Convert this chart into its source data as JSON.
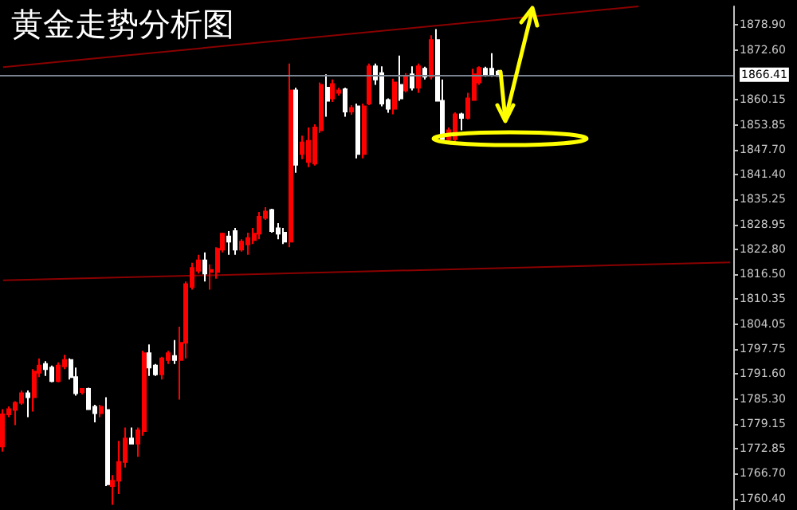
{
  "chart_data": {
    "type": "candlestick",
    "title": "黄金走势分析图",
    "categories": [
      null,
      null,
      null,
      null,
      null,
      null,
      null,
      null,
      null,
      null,
      null,
      null,
      null,
      null,
      null,
      null,
      null,
      null,
      null,
      null,
      null,
      null,
      null,
      null,
      null,
      null,
      null,
      null,
      null,
      null,
      null,
      null,
      null,
      null,
      null,
      null,
      null,
      null,
      null,
      null,
      null,
      null,
      null,
      null,
      null,
      null,
      null,
      null,
      null,
      null,
      null,
      null,
      null,
      null,
      null,
      null,
      null,
      null,
      null,
      null,
      null,
      null,
      null,
      null,
      null,
      null,
      null,
      null,
      null,
      null,
      null,
      null,
      null,
      null,
      null,
      null,
      null,
      null,
      null,
      null,
      null,
      null,
      null,
      null,
      null,
      null,
      null,
      null,
      null,
      null,
      null,
      null,
      null,
      null,
      null,
      null,
      null,
      null,
      null,
      null,
      null,
      null,
      null,
      null,
      null,
      null,
      null,
      null,
      null,
      null,
      null,
      null,
      null,
      null,
      null,
      null,
      null,
      null,
      null,
      null
    ],
    "series": [
      {
        "ohlc": [
          [
            1773.5,
            1782.8,
            1772.2,
            1781.5
          ],
          [
            1781.5,
            1783.5,
            1780.8,
            1782.8
          ],
          [
            1782.6,
            1784.8,
            1778.8,
            1784.4
          ],
          [
            1784.4,
            1787.5,
            1783.9,
            1786.8
          ],
          [
            1786.8,
            1787.5,
            1780.8,
            1785.8
          ],
          [
            1785.8,
            1792.8,
            1782.2,
            1792.2
          ],
          [
            1791.9,
            1795.5,
            1790.8,
            1793.7
          ],
          [
            1794.1,
            1794.8,
            1791.1,
            1792.8
          ],
          [
            1793.2,
            1793.7,
            1789.5,
            1789.8
          ],
          [
            1789.8,
            1794.5,
            1789.5,
            1793.7
          ],
          [
            1793.5,
            1796.4,
            1792.8,
            1795.1
          ],
          [
            1795.1,
            1795.5,
            1790.2,
            1790.8
          ],
          [
            1790.8,
            1793.2,
            1786.2,
            1786.8
          ],
          [
            1787.1,
            1787.9,
            1786.5,
            1787.9
          ],
          [
            1787.9,
            1788.2,
            1782.6,
            1782.8
          ],
          [
            1783.4,
            1783.9,
            1779.5,
            1781.8
          ],
          [
            1781.8,
            1783.9,
            1780.8,
            1783.4
          ],
          [
            1782.6,
            1785.8,
            1763.6,
            1764.0
          ],
          [
            1763.6,
            1766.3,
            1758.9,
            1764.9
          ],
          [
            1764.9,
            1774.9,
            1761.6,
            1769.6
          ],
          [
            1769.6,
            1778.2,
            1768.2,
            1775.5
          ],
          [
            1775.5,
            1778.2,
            1774.2,
            1774.2
          ],
          [
            1774.2,
            1778.2,
            1770.9,
            1777.5
          ],
          [
            1777.3,
            1797.4,
            1776.2,
            1796.8
          ],
          [
            1796.8,
            1799.0,
            1791.1,
            1793.2
          ],
          [
            1793.7,
            1794.1,
            1791.1,
            1791.5
          ],
          [
            1791.5,
            1795.9,
            1790.2,
            1795.5
          ],
          [
            1795.1,
            1797.4,
            1794.1,
            1796.8
          ],
          [
            1796.1,
            1800.1,
            1794.1,
            1795.1
          ],
          [
            1795.1,
            1803.4,
            1785.2,
            1799.4
          ],
          [
            1799.4,
            1814.7,
            1795.5,
            1814.1
          ],
          [
            1813.4,
            1819.4,
            1812.7,
            1818.1
          ],
          [
            1817.4,
            1821.4,
            1816.7,
            1820.0
          ],
          [
            1820.0,
            1822.0,
            1814.7,
            1816.7
          ],
          [
            1817.1,
            1819.0,
            1812.7,
            1817.6
          ],
          [
            1817.1,
            1823.3,
            1815.4,
            1822.9
          ],
          [
            1822.7,
            1826.9,
            1822.0,
            1826.7
          ],
          [
            1826.0,
            1827.3,
            1821.4,
            1824.7
          ],
          [
            1827.3,
            1828.1,
            1821.4,
            1822.7
          ],
          [
            1822.7,
            1825.3,
            1822.2,
            1824.7
          ],
          [
            1824.0,
            1826.9,
            1821.4,
            1825.6
          ],
          [
            1825.1,
            1828.1,
            1824.1,
            1826.7
          ],
          [
            1826.7,
            1832.1,
            1825.3,
            1830.9
          ],
          [
            1830.6,
            1833.3,
            1830.1,
            1832.2
          ],
          [
            1832.6,
            1832.9,
            1826.9,
            1827.3
          ],
          [
            1828.0,
            1829.3,
            1825.3,
            1826.7
          ],
          [
            1826.9,
            1828.1,
            1824.1,
            1824.7
          ],
          [
            1824.7,
            1869.2,
            1823.3,
            1862.5
          ],
          [
            1862.5,
            1863.2,
            1841.9,
            1843.9
          ],
          [
            1846.6,
            1851.2,
            1845.3,
            1849.5
          ],
          [
            1844.6,
            1853.2,
            1843.3,
            1849.9
          ],
          [
            1844.2,
            1854.0,
            1843.7,
            1853.2
          ],
          [
            1852.5,
            1864.5,
            1851.9,
            1863.9
          ],
          [
            1863.2,
            1866.5,
            1855.9,
            1859.9
          ],
          [
            1860.5,
            1865.2,
            1859.6,
            1864.1
          ],
          [
            1861.9,
            1863.2,
            1861.2,
            1862.5
          ],
          [
            1862.8,
            1863.2,
            1855.9,
            1857.2
          ],
          [
            1857.2,
            1858.8,
            1856.4,
            1858.1
          ],
          [
            1858.5,
            1859.2,
            1845.5,
            1846.6
          ],
          [
            1846.6,
            1859.2,
            1845.5,
            1858.5
          ],
          [
            1859.2,
            1869.2,
            1858.8,
            1868.5
          ],
          [
            1868.5,
            1869.2,
            1863.9,
            1865.2
          ],
          [
            1866.8,
            1868.5,
            1858.5,
            1859.2
          ],
          [
            1860.1,
            1860.5,
            1856.9,
            1857.9
          ],
          [
            1857.9,
            1865.4,
            1856.5,
            1864.5
          ],
          [
            1863.9,
            1871.2,
            1859.9,
            1860.5
          ],
          [
            1862.5,
            1866.8,
            1862.0,
            1865.9
          ],
          [
            1866.5,
            1868.5,
            1862.5,
            1863.2
          ],
          [
            1863.2,
            1869.2,
            1861.9,
            1868.5
          ],
          [
            1867.9,
            1868.4,
            1865.2,
            1865.9
          ],
          [
            1865.9,
            1876.3,
            1865.2,
            1875.1
          ],
          [
            1875.1,
            1877.8,
            1859.9,
            1859.9
          ],
          [
            1859.9,
            1865.2,
            1850.3,
            1850.3
          ],
          [
            1850.3,
            1853.2,
            1849.6,
            1852.5
          ],
          [
            1850.3,
            1857.0,
            1849.6,
            1856.5
          ],
          [
            1856.5,
            1856.9,
            1852.5,
            1855.6
          ],
          [
            1855.6,
            1861.9,
            1855.2,
            1860.5
          ],
          [
            1860.1,
            1867.9,
            1859.9,
            1866.5
          ],
          [
            1864.5,
            1868.5,
            1863.9,
            1868.1
          ],
          [
            1867.9,
            1868.4,
            1865.9,
            1866.5
          ],
          [
            1867.9,
            1871.8,
            1865.9,
            1866.5
          ],
          [
            1867.2,
            1867.6,
            1865.9,
            1866.1
          ],
          null,
          null,
          null,
          null,
          null,
          null,
          null,
          null,
          null,
          null,
          null,
          null,
          null,
          null,
          null,
          null,
          null,
          null,
          null,
          null,
          null,
          null,
          null,
          null,
          null,
          null,
          null,
          null,
          null,
          null,
          null,
          null,
          null,
          null,
          null,
          null,
          null,
          null
        ],
        "colors": [
          "#ff0000",
          "#ff0000",
          "#ff0000",
          "#ff0000",
          "#ffffff",
          "#ff0000",
          "#ff0000",
          "#ffffff",
          "#ffffff",
          "#ff0000",
          "#ff0000",
          "#ffffff",
          "#ffffff",
          "#ff0000",
          "#ffffff",
          "#ffffff",
          "#ff0000",
          "#ffffff",
          "#ff0000",
          "#ff0000",
          "#ff0000",
          "#ffffff",
          "#ff0000",
          "#ff0000",
          "#ffffff",
          "#ffffff",
          "#ff0000",
          "#ff0000",
          "#ffffff",
          "#ff0000",
          "#ff0000",
          "#ff0000",
          "#ff0000",
          "#ffffff",
          "#ff0000",
          "#ff0000",
          "#ff0000",
          "#ffffff",
          "#ffffff",
          "#ff0000",
          "#ff0000",
          "#ff0000",
          "#ff0000",
          "#ff0000",
          "#ffffff",
          "#ffffff",
          "#ffffff",
          "#ff0000",
          "#ffffff",
          "#ff0000",
          "#ff0000",
          "#ff0000",
          "#ff0000",
          "#ffffff",
          "#ff0000",
          "#ff0000",
          "#ffffff",
          "#ff0000",
          "#ffffff",
          "#ff0000",
          "#ff0000",
          "#ffffff",
          "#ffffff",
          "#ffffff",
          "#ff0000",
          "#ffffff",
          "#ff0000",
          "#ffffff",
          "#ff0000",
          "#ffffff",
          "#ff0000",
          "#ffffff",
          "#ffffff",
          "#ff0000",
          "#ff0000",
          "#ffffff",
          "#ff0000",
          "#ff0000",
          "#ff0000",
          "#ffffff",
          "#ffffff",
          "#ffffff",
          null,
          null,
          null,
          null,
          null,
          null,
          null,
          null,
          null,
          null,
          null,
          null,
          null,
          null,
          null,
          null,
          null,
          null,
          null,
          null,
          null,
          null,
          null,
          null,
          null,
          null,
          null,
          null,
          null,
          null,
          null,
          null,
          null,
          null,
          null,
          null,
          null,
          null
        ]
      },
      {
        "type": "line",
        "color": "#8b0000",
        "values": [
          1868.3,
          null,
          null,
          null,
          null,
          null,
          null,
          null,
          null,
          null,
          null,
          null,
          null,
          null,
          null,
          null,
          null,
          null,
          null,
          null,
          null,
          null,
          null,
          null,
          null,
          null,
          null,
          null,
          null,
          null,
          null,
          null,
          null,
          null,
          null,
          null,
          null,
          null,
          null,
          null,
          null,
          null,
          null,
          null,
          null,
          null,
          null,
          null,
          null,
          null,
          null,
          null,
          null,
          null,
          null,
          null,
          null,
          null,
          null,
          null,
          null,
          null,
          null,
          null,
          null,
          null,
          null,
          null,
          null,
          null,
          null,
          null,
          null,
          null,
          null,
          null,
          null,
          null,
          null,
          null,
          null,
          null,
          null,
          null,
          null,
          null,
          null,
          null,
          null,
          null,
          null,
          null,
          null,
          null,
          null,
          null,
          null,
          null,
          null,
          null,
          null,
          null,
          null,
          null,
          1883.5,
          null,
          null,
          null,
          null,
          null,
          null,
          null,
          null,
          null,
          null,
          null,
          null,
          null,
          null,
          null
        ]
      },
      {
        "type": "line",
        "color": "#8b0000",
        "values": [
          1815.0,
          null,
          null,
          null,
          null,
          null,
          null,
          null,
          null,
          null,
          null,
          null,
          null,
          null,
          null,
          null,
          null,
          null,
          null,
          null,
          null,
          null,
          null,
          null,
          null,
          null,
          null,
          null,
          null,
          null,
          null,
          null,
          null,
          null,
          null,
          null,
          null,
          null,
          null,
          null,
          null,
          null,
          null,
          null,
          null,
          null,
          null,
          null,
          null,
          null,
          null,
          null,
          null,
          null,
          null,
          null,
          null,
          null,
          null,
          null,
          null,
          null,
          null,
          null,
          null,
          null,
          null,
          null,
          null,
          null,
          null,
          null,
          null,
          null,
          null,
          null,
          null,
          null,
          null,
          null,
          null,
          null,
          null,
          null,
          null,
          null,
          null,
          null,
          null,
          null,
          null,
          null,
          null,
          null,
          null,
          null,
          null,
          null,
          null,
          null,
          null,
          null,
          null,
          null,
          null,
          null,
          null,
          null,
          null,
          null,
          null,
          null,
          null,
          null,
          null,
          null,
          null,
          null,
          null,
          1819.5
        ]
      }
    ],
    "ylim": [
      1757.6,
      1883.5
    ],
    "yticks": [
      {
        "value": 1760.4,
        "label": "1760.40"
      },
      {
        "value": 1766.7,
        "label": "1766.70"
      },
      {
        "value": 1772.85,
        "label": "1772.85"
      },
      {
        "value": 1779.15,
        "label": "1779.15"
      },
      {
        "value": 1785.3,
        "label": "1785.30"
      },
      {
        "value": 1791.6,
        "label": "1791.60"
      },
      {
        "value": 1797.75,
        "label": "1797.75"
      },
      {
        "value": 1804.05,
        "label": "1804.05"
      },
      {
        "value": 1810.35,
        "label": "1810.35"
      },
      {
        "value": 1816.5,
        "label": "1816.50"
      },
      {
        "value": 1822.8,
        "label": "1822.80"
      },
      {
        "value": 1828.95,
        "label": "1828.95"
      },
      {
        "value": 1835.25,
        "label": "1835.25"
      },
      {
        "value": 1841.4,
        "label": "1841.40"
      },
      {
        "value": 1847.7,
        "label": "1847.70"
      },
      {
        "value": 1853.85,
        "label": "1853.85"
      },
      {
        "value": 1860.15,
        "label": "1860.15"
      },
      {
        "value": 1872.6,
        "label": "1872.60"
      },
      {
        "value": 1878.9,
        "label": "1878.90"
      }
    ],
    "ref_lines": [
      {
        "axis": "y",
        "value": 1866.41,
        "label": "1866.41",
        "color": "#7a8490"
      }
    ],
    "tick_labels": "y",
    "grid": false
  }
}
